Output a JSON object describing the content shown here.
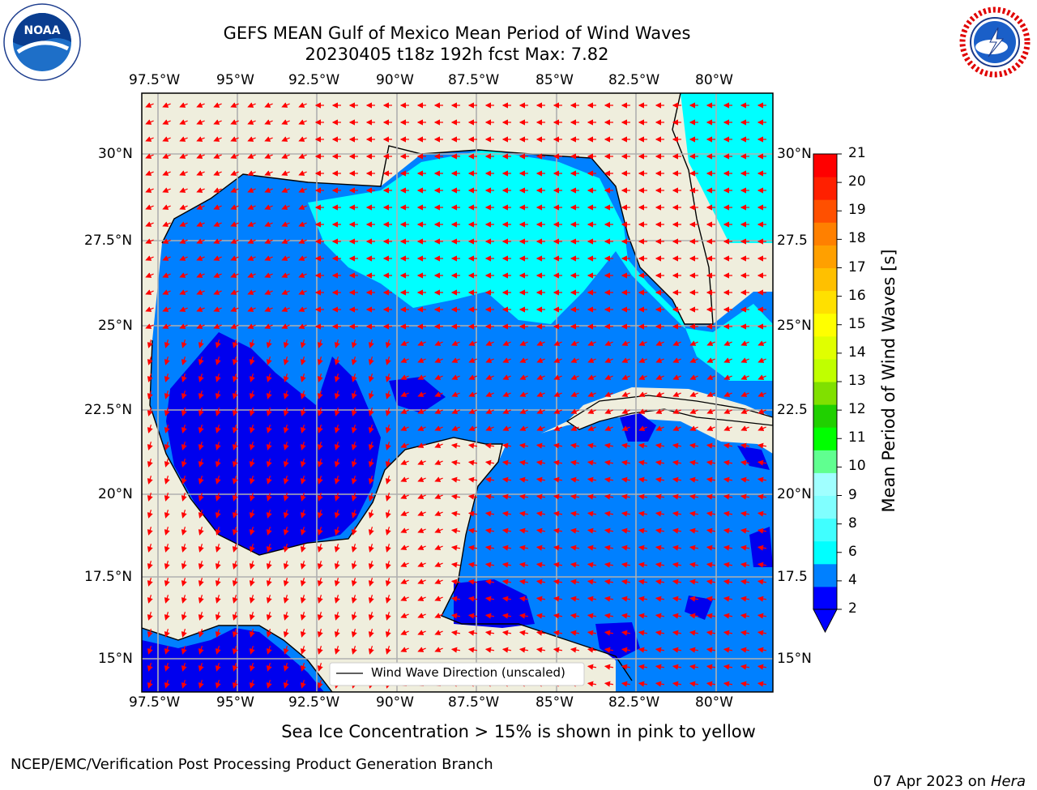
{
  "title_line1": "GEFS MEAN Gulf of Mexico Mean Period of Wind Waves",
  "title_line2": "20230405 t18z 192h fcst   Max: 7.82",
  "lon_labels": [
    "97.5°W",
    "95°W",
    "92.5°W",
    "90°W",
    "87.5°W",
    "85°W",
    "82.5°W",
    "80°W"
  ],
  "lat_labels_left": [
    "30°N",
    "27.5°N",
    "25°N",
    "22.5°N",
    "20°N",
    "17.5°N",
    "15°N"
  ],
  "lat_labels_right": [
    "30°N",
    "27.5",
    "25°N",
    "22.5",
    "20°N",
    "17.5",
    "15°N"
  ],
  "legend_label": "Wind Wave Direction (unscaled)",
  "colorbar": {
    "title": "Mean Period of Wind Waves [s]",
    "ticks": [
      21,
      20,
      19,
      18,
      17,
      16,
      15,
      14,
      13,
      12,
      11,
      10,
      9,
      8,
      6,
      4,
      2
    ],
    "colors": [
      "#0000ff",
      "#0080ff",
      "#00ffff",
      "#40ffff",
      "#80ffff",
      "#a0ffff",
      "#60ff90",
      "#00ff00",
      "#20d000",
      "#80e000",
      "#c0ff00",
      "#e0ff00",
      "#ffff00",
      "#ffe000",
      "#ffc000",
      "#ffa000",
      "#ff8000",
      "#ff5000",
      "#ff2000",
      "#ff0000"
    ]
  },
  "map_colors": {
    "land": "#efeedd",
    "ocean_low": "#0000ee",
    "ocean_mid": "#0080ff",
    "ocean_high": "#00ffff",
    "arrow": "#ff0000",
    "grid": "#b0b0b0"
  },
  "footnote_ice": "Sea Ice Concentration > 15% is shown in pink to yellow",
  "credit": "NCEP/EMC/Verification Post Processing Product Generation Branch",
  "date_text": "07 Apr 2023 on ",
  "host": "Hera",
  "logos": {
    "noaa": "NOAA",
    "nws": "NATIONAL WEATHER SERVICE"
  }
}
